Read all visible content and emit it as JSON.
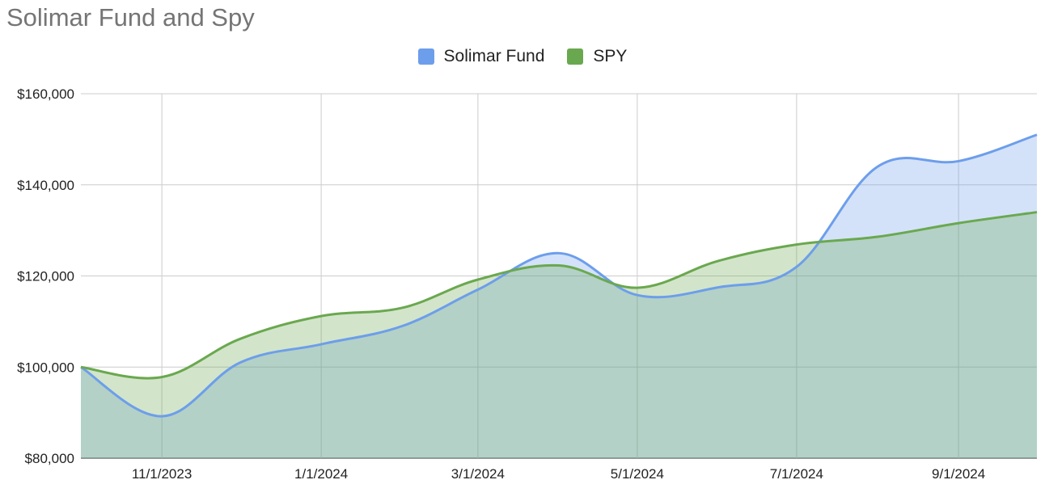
{
  "chart_data": {
    "type": "area",
    "title": "Solimar Fund and Spy",
    "xlabel": "",
    "ylabel": "",
    "x": [
      "10/1/2023",
      "11/1/2023",
      "12/1/2023",
      "1/1/2024",
      "2/1/2024",
      "3/1/2024",
      "4/1/2024",
      "5/1/2024",
      "6/1/2024",
      "7/1/2024",
      "8/1/2024",
      "9/1/2024",
      "10/1/2024"
    ],
    "x_ticks": [
      "11/1/2023",
      "1/1/2024",
      "3/1/2024",
      "5/1/2024",
      "7/1/2024",
      "9/1/2024"
    ],
    "y_ticks": [
      "$160,000",
      "$140,000",
      "$120,000",
      "$100,000",
      "$80,000"
    ],
    "ylim": [
      80000,
      160000
    ],
    "grid": true,
    "legend_position": "top-center",
    "series": [
      {
        "name": "Solimar Fund",
        "color": "#6d9eeb",
        "fill": "#c9daf8",
        "values": [
          100000,
          89200,
          101000,
          105000,
          109000,
          117000,
          125000,
          115800,
          117500,
          122000,
          144000,
          145200,
          151000
        ]
      },
      {
        "name": "SPY",
        "color": "#6aa84f",
        "fill": "#d9ead3",
        "values": [
          100000,
          97800,
          106200,
          111200,
          113000,
          119200,
          122300,
          117400,
          123300,
          126900,
          128600,
          131600,
          134000
        ]
      }
    ]
  }
}
